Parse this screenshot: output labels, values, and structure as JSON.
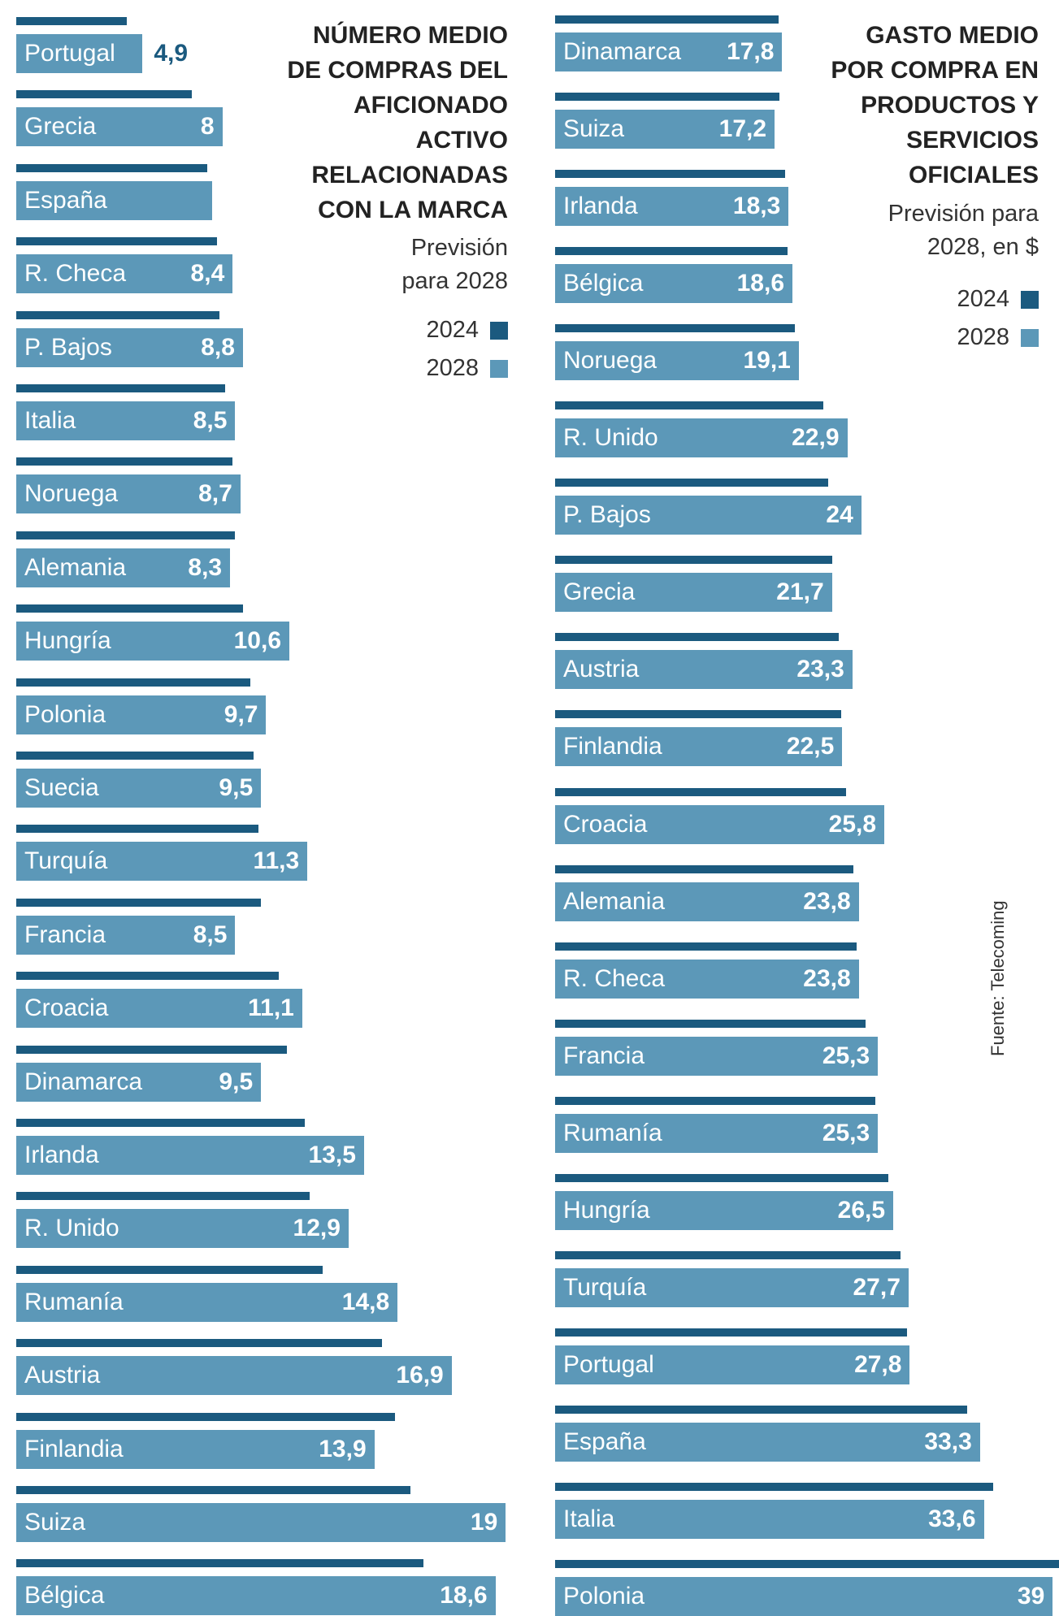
{
  "colors": {
    "series_2024": "#1b5a7f",
    "series_2028": "#5c98b8",
    "highlight_value": "#1b5a7f"
  },
  "left_panel": {
    "title_lines": [
      "NÚMERO MEDIO",
      "DE COMPRAS DEL",
      "AFICIONADO",
      "ACTIVO",
      "RELACIONADAS",
      "CON LA MARCA"
    ],
    "subtitle_lines": [
      "Previsión",
      "para 2028"
    ],
    "legend": [
      {
        "label": "2024",
        "color_key": "series_2024"
      },
      {
        "label": "2028",
        "color_key": "series_2028"
      }
    ]
  },
  "right_panel": {
    "title_lines": [
      "GASTO MEDIO",
      "POR COMPRA EN",
      "PRODUCTOS Y",
      "SERVICIOS",
      "OFICIALES"
    ],
    "subtitle_lines": [
      "Previsión para",
      "2028, en $"
    ],
    "legend": [
      {
        "label": "2024",
        "color_key": "series_2024"
      },
      {
        "label": "2028",
        "color_key": "series_2028"
      }
    ]
  },
  "source": "Fuente: Telecoming",
  "chart_data": [
    {
      "type": "bar",
      "orientation": "horizontal",
      "title": "NÚMERO MEDIO DE COMPRAS DEL AFICIONADO ACTIVO RELACIONADAS CON LA MARCA",
      "subtitle": "Previsión para 2028",
      "max_value": 19,
      "categories": [
        "Portugal",
        "Grecia",
        "España",
        "R. Checa",
        "P. Bajos",
        "Italia",
        "Noruega",
        "Alemania",
        "Hungría",
        "Polonia",
        "Suecia",
        "Turquía",
        "Francia",
        "Croacia",
        "Dinamarca",
        "Irlanda",
        "R. Unido",
        "Rumanía",
        "Austria",
        "Finlandia",
        "Suiza",
        "Bélgica"
      ],
      "series": [
        {
          "name": "2024",
          "values": [
            4.3,
            6.8,
            7.4,
            7.8,
            7.9,
            8.1,
            8.4,
            8.5,
            8.8,
            9.1,
            9.2,
            9.4,
            9.5,
            10.2,
            10.5,
            11.2,
            11.4,
            11.9,
            14.2,
            14.7,
            15.3,
            15.8
          ]
        },
        {
          "name": "2028",
          "values": [
            4.9,
            8,
            7.6,
            8.4,
            8.8,
            8.5,
            8.7,
            8.3,
            10.6,
            9.7,
            9.5,
            11.3,
            8.5,
            11.1,
            9.5,
            13.5,
            12.9,
            14.8,
            16.9,
            13.9,
            19,
            18.6
          ]
        }
      ],
      "value_labels": [
        "4,9",
        "8",
        "",
        "8,4",
        "8,8",
        "8,5",
        "8,7",
        "8,3",
        "10,6",
        "9,7",
        "9,5",
        "11,3",
        "8,5",
        "11,1",
        "9,5",
        "13,5",
        "12,9",
        "14,8",
        "16,9",
        "13,9",
        "19",
        "18,6"
      ],
      "outside_label_index": 0
    },
    {
      "type": "bar",
      "orientation": "horizontal",
      "title": "GASTO MEDIO POR COMPRA EN PRODUCTOS Y SERVICIOS OFICIALES",
      "subtitle": "Previsión para 2028, en $",
      "max_value": 39,
      "categories": [
        "Dinamarca",
        "Suiza",
        "Irlanda",
        "Bélgica",
        "Noruega",
        "R. Unido",
        "P. Bajos",
        "Grecia",
        "Austria",
        "Finlandia",
        "Croacia",
        "Alemania",
        "R. Checa",
        "Francia",
        "Rumanía",
        "Hungría",
        "Turquía",
        "Portugal",
        "España",
        "Italia",
        "Polonia"
      ],
      "series": [
        {
          "name": "2024",
          "values": [
            17.5,
            17.6,
            18,
            18.2,
            18.8,
            21,
            21.4,
            21.7,
            22.2,
            22.4,
            22.8,
            23.4,
            23.6,
            24.3,
            25.1,
            26.1,
            27.1,
            27.6,
            32.3,
            34.3,
            39.5
          ]
        },
        {
          "name": "2028",
          "values": [
            17.8,
            17.2,
            18.3,
            18.6,
            19.1,
            22.9,
            24,
            21.7,
            23.3,
            22.5,
            25.8,
            23.8,
            23.8,
            25.3,
            25.3,
            26.5,
            27.7,
            27.8,
            33.3,
            33.6,
            39
          ]
        }
      ],
      "value_labels": [
        "17,8",
        "17,2",
        "18,3",
        "18,6",
        "19,1",
        "22,9",
        "24",
        "21,7",
        "23,3",
        "22,5",
        "25,8",
        "23,8",
        "23,8",
        "25,3",
        "25,3",
        "26,5",
        "27,7",
        "27,8",
        "33,3",
        "33,6",
        "39"
      ]
    }
  ]
}
